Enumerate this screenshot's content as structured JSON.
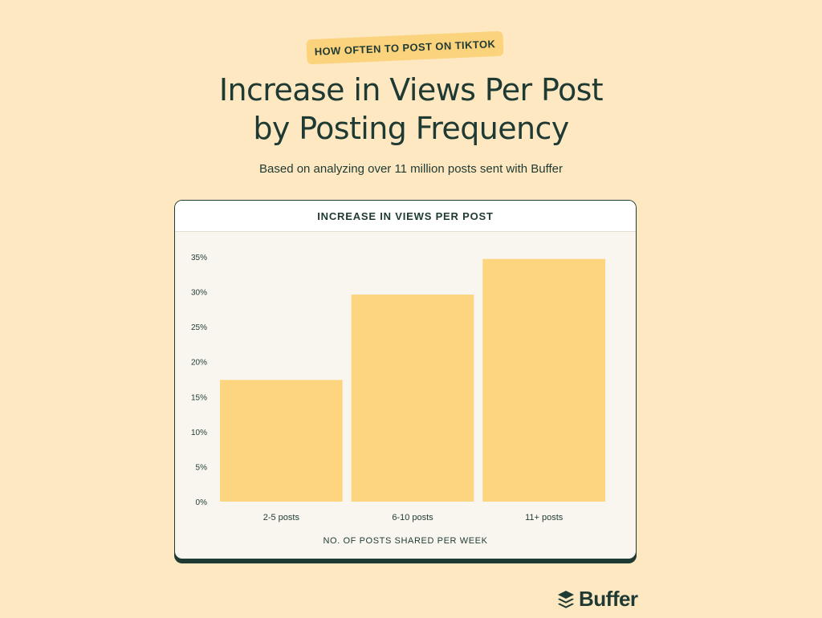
{
  "header": {
    "tag": "HOW OFTEN TO POST ON TIKTOK",
    "title_line1": "Increase in Views Per Post",
    "title_line2": "by Posting Frequency",
    "subtitle": "Based on analyzing over 11 million posts sent with Buffer"
  },
  "brand": {
    "name": "Buffer",
    "accent_color": "#fcd37d",
    "text_color": "#1f3a33",
    "background_color": "#fde8c2",
    "logo_icon": "stacked-layers-icon"
  },
  "chart_data": {
    "type": "bar",
    "title": "INCREASE IN VIEWS PER POST",
    "xlabel": "NO. OF POSTS SHARED PER WEEK",
    "ylabel": "",
    "categories": [
      "2-5 posts",
      "6-10 posts",
      "11+ posts"
    ],
    "values": [
      17.4,
      29.6,
      34.7
    ],
    "ylim": [
      0,
      35
    ],
    "yticks": [
      "0%",
      "5%",
      "10%",
      "15%",
      "20%",
      "25%",
      "30%",
      "35%"
    ],
    "ytick_values": [
      0,
      5,
      10,
      15,
      20,
      25,
      30,
      35
    ],
    "bar_color": "#fdd57f",
    "grid": false,
    "legend": "none"
  }
}
